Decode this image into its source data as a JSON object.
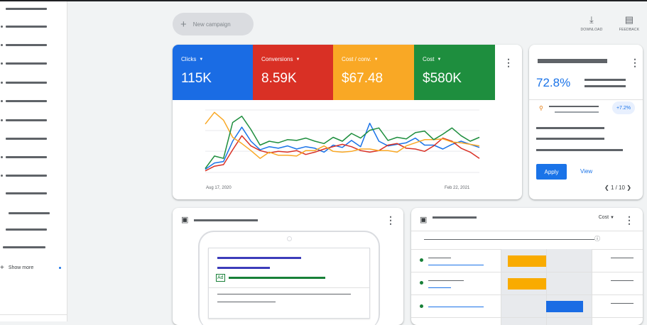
{
  "toolbar": {
    "new_campaign_label": "New campaign",
    "download_label": "DOWNLOAD",
    "feedback_label": "FEEDBACK"
  },
  "sidebar": {
    "show_more_label": "Show more"
  },
  "metrics": [
    {
      "label": "Clicks",
      "value": "115K",
      "color": "#1a6ce4"
    },
    {
      "label": "Conversions",
      "value": "8.59K",
      "color": "#d93025"
    },
    {
      "label": "Cost / conv.",
      "value": "$67.48",
      "color": "#f9a825"
    },
    {
      "label": "Cost",
      "value": "$580K",
      "color": "#1e8e3e"
    }
  ],
  "chart_data": {
    "type": "line",
    "x_start_label": "Aug 17, 2020",
    "x_end_label": "Feb 22, 2021",
    "series": [
      {
        "color": "#1a73e8",
        "values": [
          4,
          12,
          14,
          40,
          58,
          40,
          29,
          33,
          31,
          34,
          30,
          33,
          31,
          26,
          35,
          32,
          41,
          33,
          63,
          40,
          34,
          36,
          38,
          44,
          35,
          35,
          30,
          36,
          40,
          36,
          32
        ]
      },
      {
        "color": "#d93025",
        "values": [
          2,
          8,
          10,
          29,
          47,
          34,
          28,
          25,
          27,
          26,
          28,
          23,
          26,
          30,
          33,
          36,
          33,
          28,
          26,
          28,
          35,
          37,
          31,
          30,
          27,
          34,
          44,
          40,
          31,
          26,
          18
        ]
      },
      {
        "color": "#f9a825",
        "values": [
          62,
          77,
          67,
          45,
          37,
          28,
          18,
          26,
          22,
          22,
          21,
          28,
          28,
          34,
          27,
          26,
          27,
          30,
          30,
          28,
          28,
          26,
          34,
          38,
          42,
          42,
          43,
          39,
          38,
          36,
          34
        ]
      },
      {
        "color": "#1e8e3e",
        "values": [
          5,
          21,
          18,
          64,
          72,
          55,
          35,
          40,
          38,
          42,
          41,
          44,
          40,
          37,
          45,
          40,
          50,
          44,
          54,
          57,
          41,
          45,
          43,
          51,
          53,
          42,
          49,
          57,
          47,
          40,
          45
        ]
      }
    ],
    "ylim": [
      0,
      80
    ]
  },
  "recommendation": {
    "value": "72.8%",
    "badge": "+7.2%",
    "apply_label": "Apply",
    "view_label": "View",
    "pager": "1 / 10"
  },
  "table": {
    "column_label": "Cost"
  }
}
